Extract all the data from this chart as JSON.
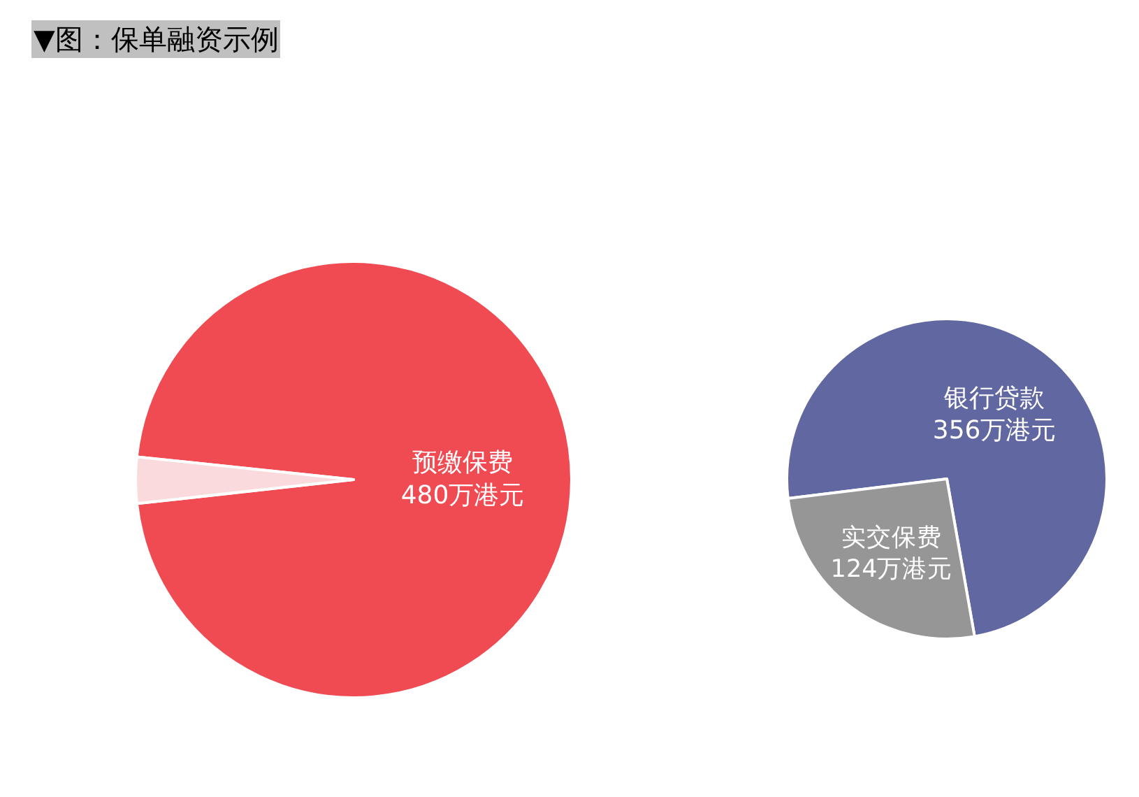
{
  "chart_data": [
    {
      "type": "pie",
      "title": "▼图：保单融资示例",
      "categories": [
        "预缴保费",
        null
      ],
      "values": [
        480,
        17
      ],
      "value_labels": [
        "480万港元",
        null
      ],
      "colors": [
        "#f04b52",
        "#fadadd"
      ]
    },
    {
      "type": "pie",
      "categories": [
        "银行贷款",
        "实交保费"
      ],
      "values": [
        356,
        124
      ],
      "value_labels": [
        "356万港元",
        "124万港元"
      ],
      "colors": [
        "#6167a0",
        "#969696"
      ]
    }
  ]
}
